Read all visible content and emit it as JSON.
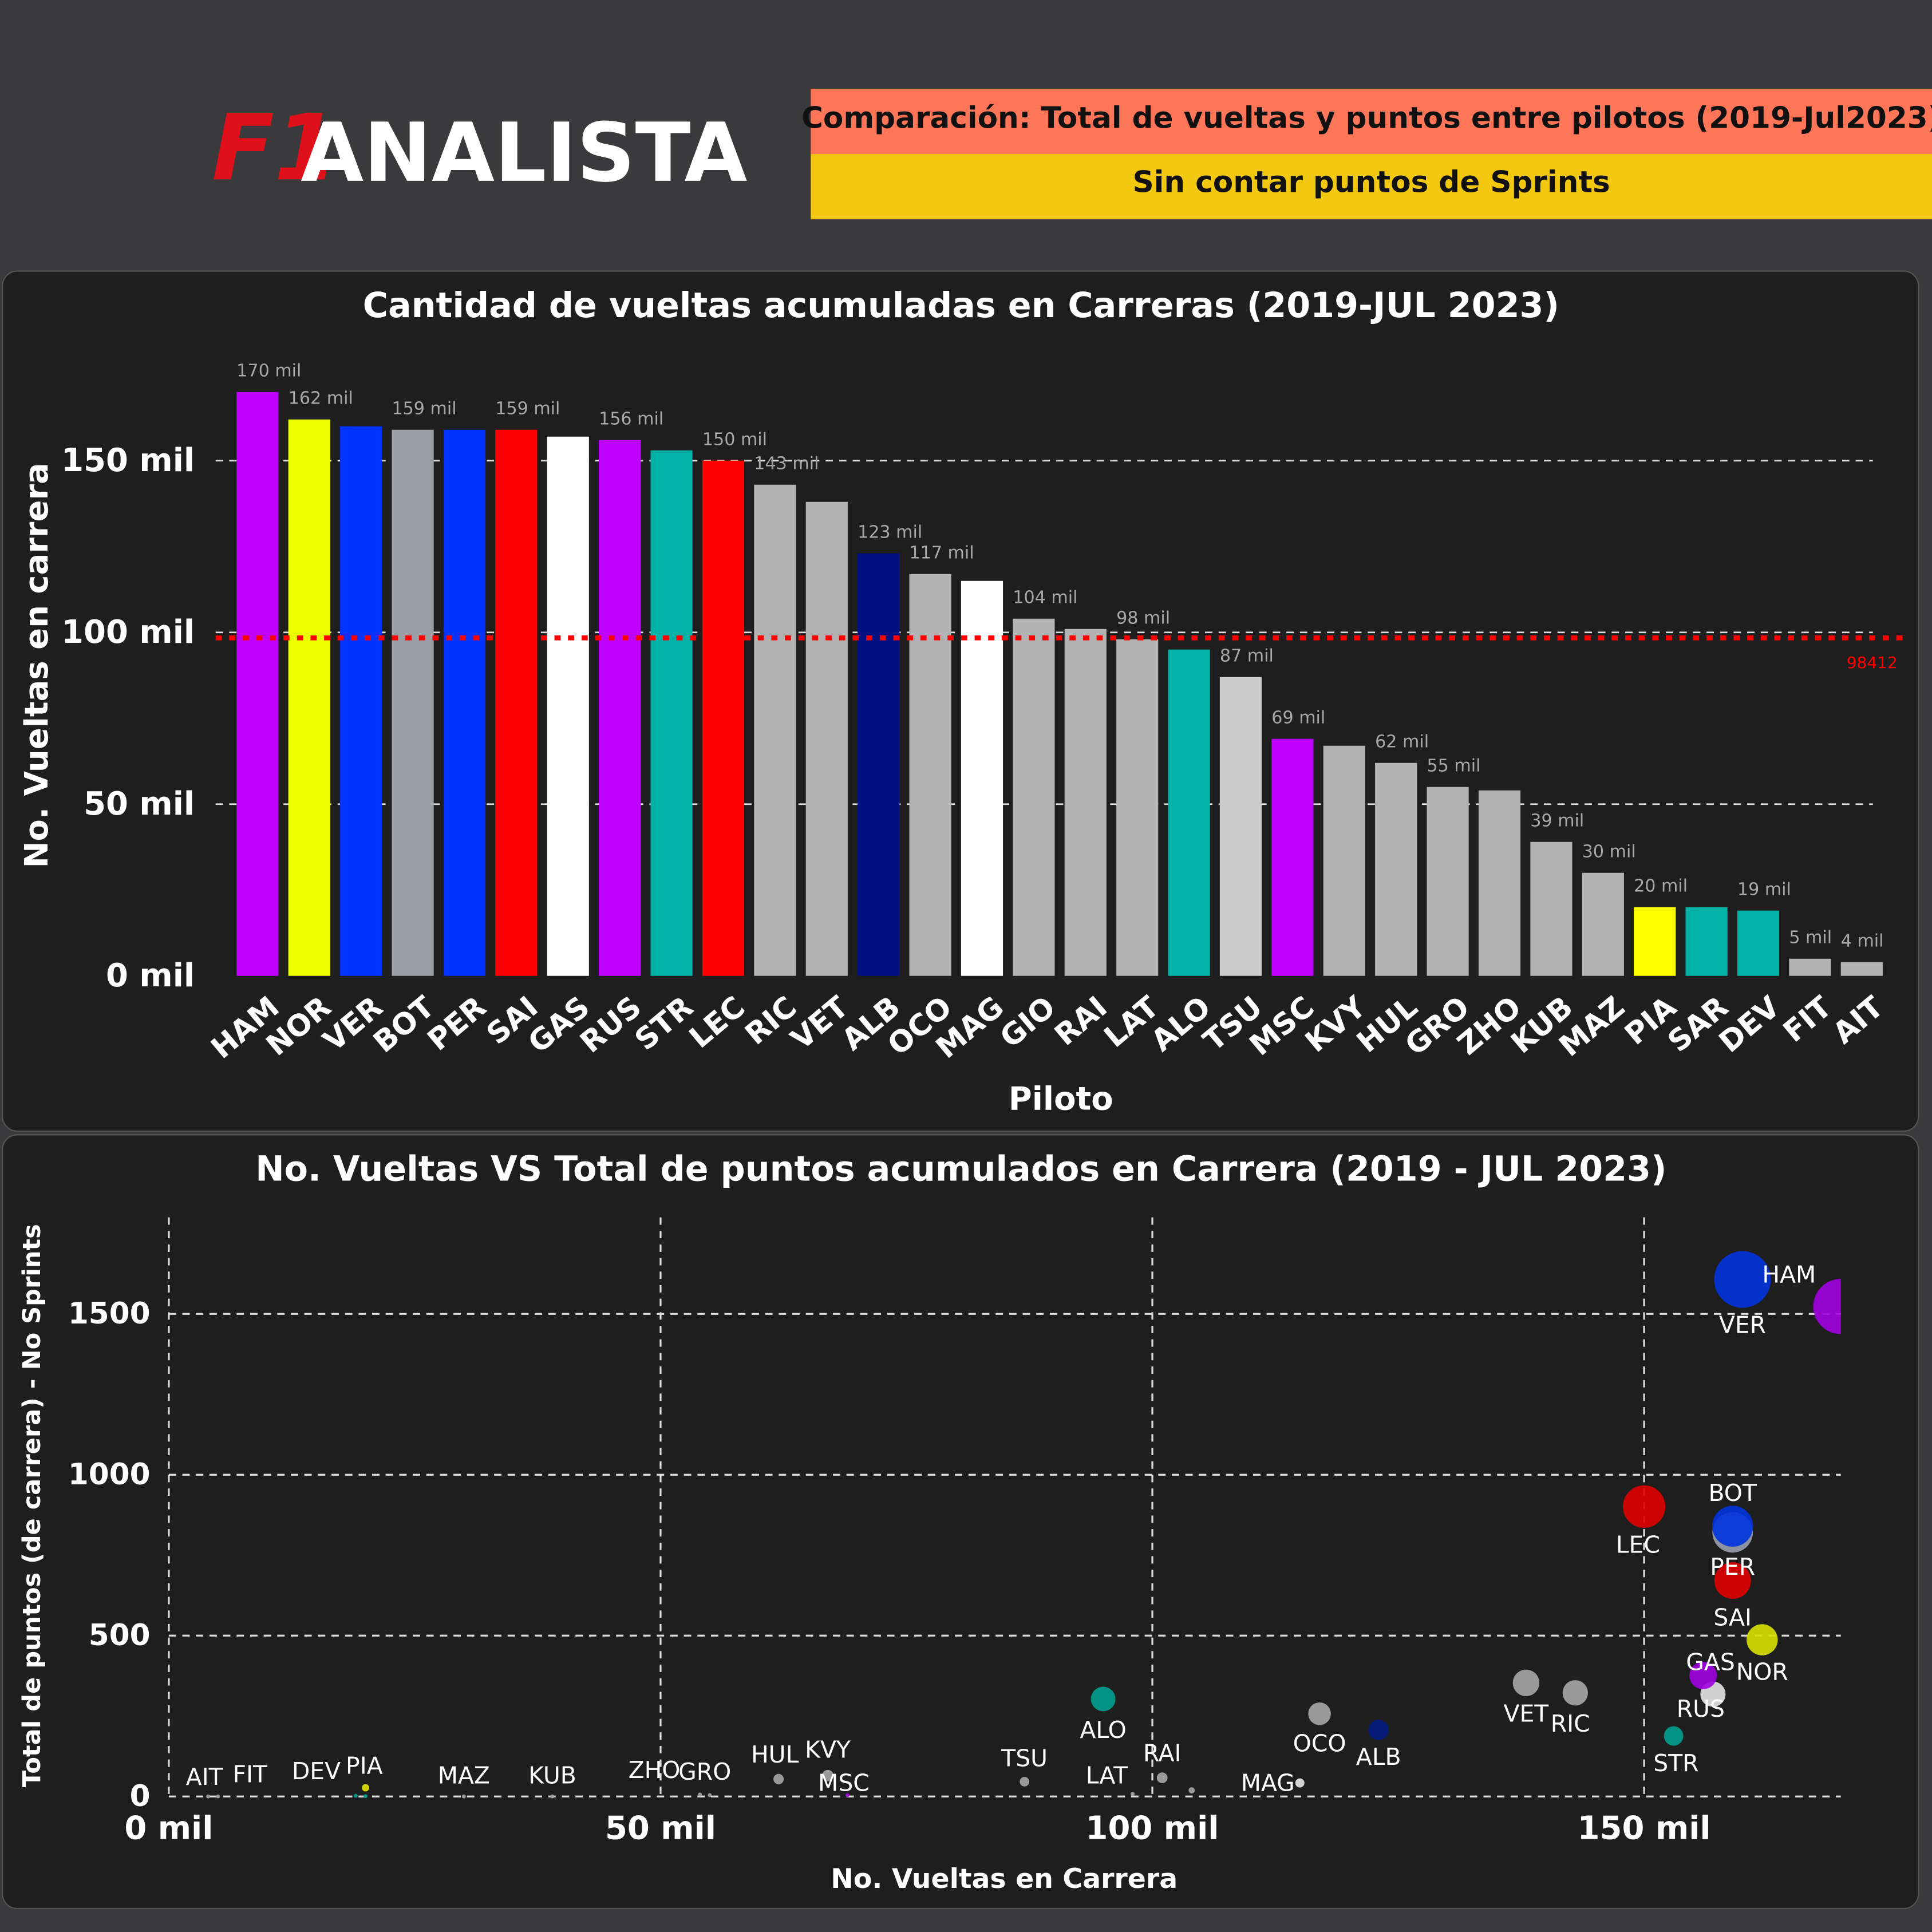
{
  "header": {
    "logo_mark": "F1",
    "logo_text": "ANALISTA",
    "title": "Comparación: Total de vueltas y puntos entre pilotos (2019-Jul2023)",
    "subtitle": "Sin contar puntos de Sprints"
  },
  "chart_data": [
    {
      "type": "bar",
      "title": "Cantidad de vueltas acumuladas en Carreras (2019-JUL 2023)",
      "x_label": "Piloto",
      "y_label": "No. Vueltas en carrera",
      "categories": [
        "HAM",
        "NOR",
        "VER",
        "BOT",
        "PER",
        "SAI",
        "GAS",
        "RUS",
        "STR",
        "LEC",
        "RIC",
        "VET",
        "ALB",
        "OCO",
        "MAG",
        "GIO",
        "RAI",
        "LAT",
        "ALO",
        "TSU",
        "MSC",
        "KVY",
        "HUL",
        "GRO",
        "ZHO",
        "KUB",
        "MAZ",
        "PIA",
        "SAR",
        "DEV",
        "FIT",
        "AIT"
      ],
      "values": [
        170,
        162,
        160,
        159,
        159,
        159,
        157,
        156,
        153,
        150,
        143,
        138,
        123,
        117,
        115,
        104,
        101,
        98,
        95,
        87,
        69,
        67,
        62,
        55,
        54,
        39,
        30,
        20,
        20,
        19,
        5,
        4
      ],
      "value_labels": [
        "170 mil",
        "162 mil",
        null,
        "159 mil",
        null,
        "159 mil",
        null,
        "156 mil",
        null,
        "150 mil",
        "143 mil",
        null,
        "123 mil",
        "117 mil",
        null,
        "104 mil",
        null,
        "98 mil",
        null,
        "87 mil",
        "69 mil",
        null,
        "62 mil",
        "55 mil",
        null,
        "39 mil",
        "30 mil",
        "20 mil",
        null,
        "19 mil",
        "5 mil",
        "4 mil"
      ],
      "colors": [
        "#c000ff",
        "#eeff00",
        "#0033ff",
        "#9aa0a6",
        "#0033ff",
        "#ff0000",
        "#ffffff",
        "#c000ff",
        "#00b3a6",
        "#ff0000",
        "#b3b3b3",
        "#b3b3b3",
        "#001080",
        "#b3b3b3",
        "#ffffff",
        "#b3b3b3",
        "#b3b3b3",
        "#b3b3b3",
        "#00b3a6",
        "#cccccc",
        "#c000ff",
        "#b3b3b3",
        "#b3b3b3",
        "#b3b3b3",
        "#b3b3b3",
        "#b3b3b3",
        "#b3b3b3",
        "#ffff00",
        "#00b3a6",
        "#00b3a6",
        "#b3b3b3",
        "#b3b3b3"
      ],
      "ylim": [
        0,
        180
      ],
      "yticks": [
        {
          "value": 0,
          "label": "0 mil"
        },
        {
          "value": 50,
          "label": "50 mil"
        },
        {
          "value": 100,
          "label": "100 mil"
        },
        {
          "value": 150,
          "label": "150 mil"
        }
      ],
      "reference_line": {
        "value": 98.412,
        "label": "98412",
        "color": "#ff0000"
      },
      "grid": true
    },
    {
      "type": "scatter",
      "title": "No. Vueltas VS Total de puntos acumulados en Carrera (2019 - JUL 2023)",
      "x_label": "No. Vueltas en Carrera",
      "y_label": "Total de puntos (de carrera) - No Sprints",
      "labels": [
        "HAM",
        "NOR",
        "VER",
        "BOT",
        "PER",
        "SAI",
        "GAS",
        "RUS",
        "STR",
        "LEC",
        "RIC",
        "VET",
        "ALB",
        "OCO",
        "MAG",
        null,
        "RAI",
        "LAT",
        "ALO",
        "TSU",
        "MSC",
        "KVY",
        "HUL",
        "GRO",
        "ZHO",
        "KUB",
        "MAZ",
        "PIA",
        null,
        "DEV",
        "FIT",
        "AIT"
      ],
      "x": [
        170,
        162,
        160,
        159,
        159,
        159,
        157,
        156,
        153,
        150,
        143,
        138,
        123,
        117,
        115,
        104,
        101,
        98,
        95,
        87,
        69,
        67,
        62,
        55,
        54,
        39,
        30,
        20,
        20,
        19,
        5,
        4
      ],
      "values": [
        1523,
        487,
        1607,
        821,
        840,
        671,
        318,
        376,
        188,
        901,
        322,
        353,
        207,
        257,
        42,
        19,
        58,
        8,
        303,
        46,
        4,
        65,
        54,
        4,
        6,
        0,
        0,
        27,
        1,
        2,
        0,
        0
      ],
      "colors": [
        "#a000e0",
        "#d8e000",
        "#0033dd",
        "#9aa0b0",
        "#0033dd",
        "#e00000",
        "#e6e6e6",
        "#a000e0",
        "#00a090",
        "#e00000",
        "#a6a6a6",
        "#a6a6a6",
        "#001a80",
        "#a6a6a6",
        "#e6e6e6",
        "#a6a6a6",
        "#a6a6a6",
        "#a6a6a6",
        "#00a090",
        "#a6a6a6",
        "#a000e0",
        "#a6a6a6",
        "#a6a6a6",
        "#a6a6a6",
        "#a6a6a6",
        "#a6a6a6",
        "#a6a6a6",
        "#e6e600",
        "#00a090",
        "#00a090",
        "#a6a6a6",
        "#a6a6a6"
      ],
      "xlim": [
        0,
        170
      ],
      "ylim": [
        0,
        1800
      ],
      "xticks": [
        {
          "value": 0,
          "label": "0 mil"
        },
        {
          "value": 50,
          "label": "50 mil"
        },
        {
          "value": 100,
          "label": "100 mil"
        },
        {
          "value": 150,
          "label": "150 mil"
        }
      ],
      "yticks": [
        0,
        500,
        1000,
        1500
      ],
      "grid": true
    }
  ]
}
